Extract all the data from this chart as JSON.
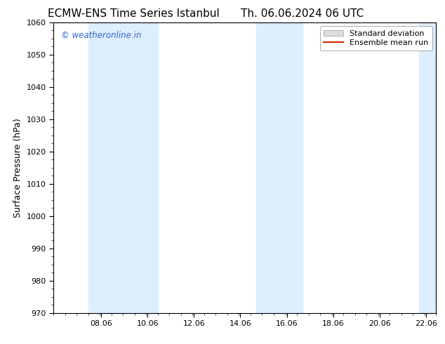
{
  "title_left": "ECMW-ENS Time Series Istanbul",
  "title_right": "Th. 06.06.2024 06 UTC",
  "ylabel": "Surface Pressure (hPa)",
  "xlim": [
    6.0,
    22.5
  ],
  "ylim": [
    970,
    1060
  ],
  "yticks": [
    970,
    980,
    990,
    1000,
    1010,
    1020,
    1030,
    1040,
    1050,
    1060
  ],
  "xtick_labels": [
    "08.06",
    "10.06",
    "12.06",
    "14.06",
    "16.06",
    "18.06",
    "20.06",
    "22.06"
  ],
  "xtick_positions": [
    8.06,
    10.06,
    12.06,
    14.06,
    16.06,
    18.06,
    20.06,
    22.06
  ],
  "shaded_bands": [
    {
      "x_start": 7.5,
      "x_end": 9.5
    },
    {
      "x_start": 9.5,
      "x_end": 10.5
    },
    {
      "x_start": 14.75,
      "x_end": 15.75
    },
    {
      "x_start": 15.75,
      "x_end": 16.75
    },
    {
      "x_start": 21.75,
      "x_end": 22.5
    }
  ],
  "band_color": "#ddeeff",
  "watermark": "© weatheronline.in",
  "watermark_color": "#3366cc",
  "background_color": "#ffffff",
  "title_fontsize": 11,
  "legend_fontsize": 8,
  "axis_fontsize": 8,
  "ylabel_fontsize": 9
}
